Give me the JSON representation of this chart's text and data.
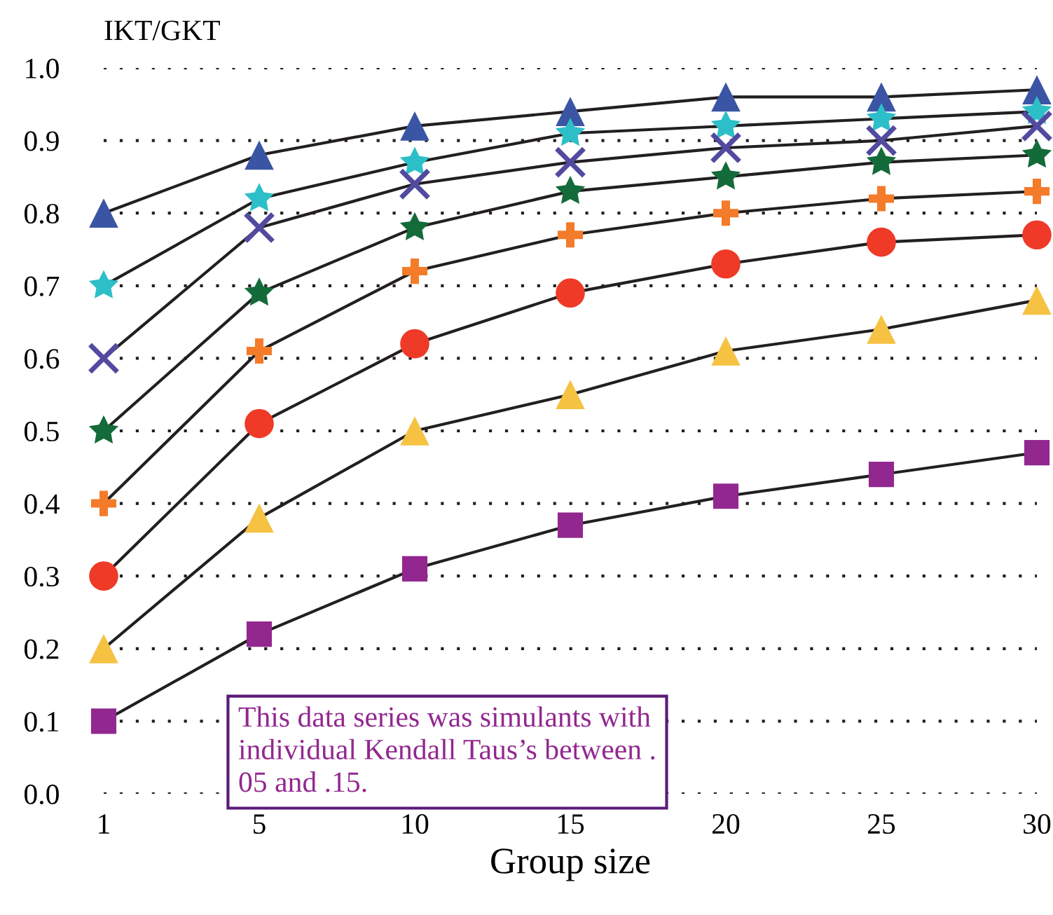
{
  "chart_data": {
    "type": "line",
    "xlabel": "Group size",
    "ylabel": "IKT/GKT",
    "categories": [
      "1",
      "5",
      "10",
      "15",
      "20",
      "25",
      "30"
    ],
    "series": [
      {
        "color": "#3a55a4",
        "marker": "triangle",
        "values": [
          0.8,
          0.88,
          0.92,
          0.94,
          0.96,
          0.96,
          0.97
        ]
      },
      {
        "color": "#2dbfc8",
        "marker": "star",
        "values": [
          0.7,
          0.82,
          0.87,
          0.91,
          0.92,
          0.93,
          0.94
        ]
      },
      {
        "color": "#524a9f",
        "marker": "cross",
        "values": [
          0.6,
          0.78,
          0.84,
          0.87,
          0.89,
          0.9,
          0.92
        ]
      },
      {
        "color": "#146b3a",
        "marker": "star",
        "values": [
          0.5,
          0.69,
          0.78,
          0.83,
          0.85,
          0.87,
          0.88
        ]
      },
      {
        "color": "#f47b2a",
        "marker": "plus",
        "values": [
          0.4,
          0.61,
          0.72,
          0.77,
          0.8,
          0.82,
          0.83
        ]
      },
      {
        "color": "#ee3a27",
        "marker": "circle",
        "values": [
          0.3,
          0.51,
          0.62,
          0.69,
          0.73,
          0.76,
          0.77
        ]
      },
      {
        "color": "#f5c242",
        "marker": "triangle",
        "values": [
          0.2,
          0.38,
          0.5,
          0.55,
          0.61,
          0.64,
          0.68
        ]
      },
      {
        "color": "#92278f",
        "marker": "square",
        "values": [
          0.1,
          0.22,
          0.31,
          0.37,
          0.41,
          0.44,
          0.47
        ]
      }
    ],
    "ylim": [
      0.0,
      1.0
    ],
    "yticks": [
      {
        "value": 0,
        "label": "0.0"
      },
      0.1,
      0.2,
      0.3,
      0.4,
      0.5,
      0.6,
      0.7,
      0.8,
      0.9,
      {
        "value": 1,
        "label": "1.0"
      }
    ],
    "grid": "y",
    "line_style": "solid",
    "legend": false,
    "annotations": [
      "This data series was simulants with\nindividual Kendall Taus’s between .\n05 and .15."
    ]
  }
}
